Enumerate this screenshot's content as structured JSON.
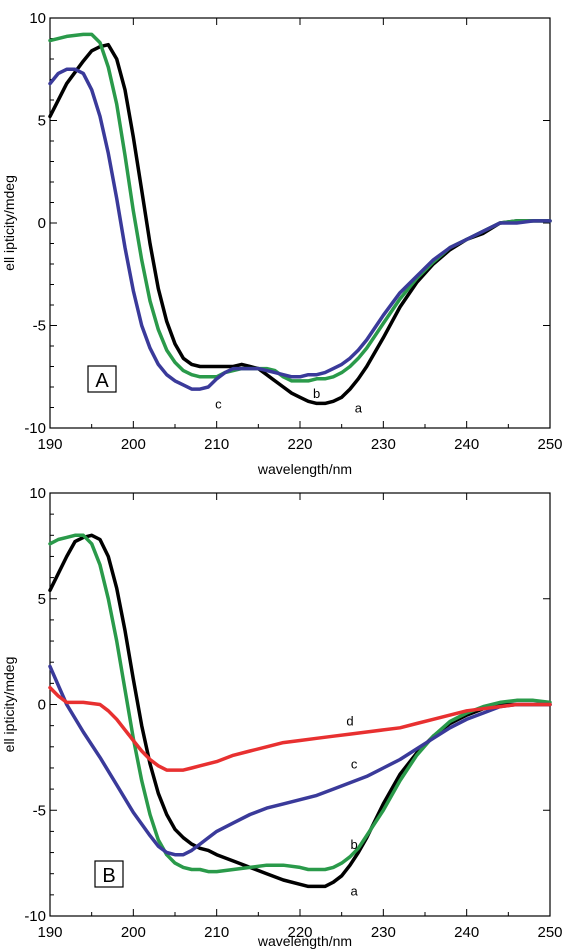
{
  "chart_data": [
    {
      "type": "line",
      "panel_label": "A",
      "xlabel": "wavelength/nm",
      "ylabel": "ell ipticity/mdeg",
      "xlim": [
        190,
        250
      ],
      "ylim": [
        -10,
        10
      ],
      "xticks": [
        190,
        200,
        210,
        220,
        230,
        240,
        250
      ],
      "yticks": [
        -10,
        -5,
        0,
        5,
        10
      ],
      "grid": false,
      "series": [
        {
          "name": "a",
          "color": "#000000",
          "label_at": [
            227,
            -9.0
          ],
          "x": [
            190,
            192,
            194,
            195,
            196,
            197,
            198,
            199,
            200,
            201,
            202,
            203,
            204,
            205,
            206,
            207,
            208,
            209,
            210,
            211,
            212,
            213,
            214,
            215,
            216,
            217,
            218,
            219,
            220,
            221,
            222,
            223,
            224,
            225,
            226,
            227,
            228,
            229,
            230,
            232,
            234,
            236,
            238,
            240,
            242,
            244,
            246,
            248,
            250
          ],
          "y": [
            5.2,
            6.8,
            7.9,
            8.4,
            8.6,
            8.7,
            8.0,
            6.5,
            4.2,
            1.6,
            -1.0,
            -3.2,
            -4.8,
            -5.9,
            -6.6,
            -6.9,
            -7.0,
            -7.0,
            -7.0,
            -7.0,
            -7.0,
            -6.9,
            -7.0,
            -7.1,
            -7.4,
            -7.7,
            -8.0,
            -8.3,
            -8.5,
            -8.7,
            -8.8,
            -8.8,
            -8.7,
            -8.5,
            -8.1,
            -7.6,
            -7.0,
            -6.3,
            -5.6,
            -4.1,
            -2.9,
            -2.0,
            -1.3,
            -0.8,
            -0.5,
            0.0,
            0.1,
            0.1,
            0.1
          ]
        },
        {
          "name": "b",
          "color": "#2a9a4a",
          "label_at": [
            222,
            -8.3
          ],
          "x": [
            190,
            192,
            194,
            195,
            196,
            197,
            198,
            199,
            200,
            201,
            202,
            203,
            204,
            205,
            206,
            207,
            208,
            209,
            210,
            211,
            212,
            213,
            214,
            215,
            216,
            217,
            218,
            219,
            220,
            221,
            222,
            223,
            224,
            225,
            226,
            227,
            228,
            229,
            230,
            232,
            234,
            236,
            238,
            240,
            242,
            244,
            246,
            248,
            250
          ],
          "y": [
            8.9,
            9.1,
            9.2,
            9.2,
            8.8,
            7.6,
            5.8,
            3.3,
            0.6,
            -1.8,
            -3.8,
            -5.2,
            -6.2,
            -6.8,
            -7.2,
            -7.4,
            -7.5,
            -7.5,
            -7.5,
            -7.3,
            -7.2,
            -7.1,
            -7.1,
            -7.1,
            -7.1,
            -7.2,
            -7.5,
            -7.7,
            -7.7,
            -7.7,
            -7.6,
            -7.6,
            -7.5,
            -7.3,
            -7.0,
            -6.6,
            -6.1,
            -5.5,
            -4.9,
            -3.7,
            -2.7,
            -1.9,
            -1.2,
            -0.8,
            -0.4,
            0.0,
            0.1,
            0.1,
            0.1
          ]
        },
        {
          "name": "c",
          "color": "#3a3a9a",
          "label_at": [
            210.2,
            -8.8
          ],
          "x": [
            190,
            191,
            192,
            193,
            194,
            195,
            196,
            197,
            198,
            199,
            200,
            201,
            202,
            203,
            204,
            205,
            206,
            207,
            208,
            209,
            210,
            211,
            212,
            213,
            214,
            215,
            216,
            217,
            218,
            219,
            220,
            221,
            222,
            223,
            224,
            225,
            226,
            227,
            228,
            229,
            230,
            232,
            234,
            236,
            238,
            240,
            242,
            244,
            246,
            248,
            250
          ],
          "y": [
            6.8,
            7.3,
            7.5,
            7.5,
            7.3,
            6.5,
            5.2,
            3.4,
            1.2,
            -1.2,
            -3.3,
            -5.0,
            -6.1,
            -6.9,
            -7.4,
            -7.7,
            -7.9,
            -8.1,
            -8.1,
            -8.0,
            -7.6,
            -7.3,
            -7.1,
            -7.1,
            -7.1,
            -7.1,
            -7.2,
            -7.3,
            -7.4,
            -7.5,
            -7.5,
            -7.4,
            -7.4,
            -7.3,
            -7.1,
            -6.9,
            -6.6,
            -6.2,
            -5.7,
            -5.1,
            -4.5,
            -3.4,
            -2.6,
            -1.8,
            -1.2,
            -0.8,
            -0.4,
            0.0,
            0.0,
            0.1,
            0.1
          ]
        }
      ]
    },
    {
      "type": "line",
      "panel_label": "B",
      "xlabel": "wavelength/nm",
      "ylabel": "ell ipticity/mdeg",
      "xlim": [
        190,
        250
      ],
      "ylim": [
        -10,
        10
      ],
      "xticks": [
        190,
        200,
        210,
        220,
        230,
        240,
        250
      ],
      "yticks": [
        -10,
        -5,
        0,
        5,
        10
      ],
      "grid": false,
      "series": [
        {
          "name": "a",
          "color": "#000000",
          "label_at": [
            226.5,
            -8.8
          ],
          "x": [
            190,
            192,
            193,
            194,
            195,
            196,
            197,
            198,
            199,
            200,
            201,
            202,
            203,
            204,
            205,
            206,
            207,
            208,
            209,
            210,
            212,
            214,
            216,
            218,
            220,
            221,
            222,
            223,
            224,
            225,
            226,
            227,
            228,
            229,
            230,
            232,
            234,
            236,
            238,
            240,
            242,
            244,
            246,
            248,
            250
          ],
          "y": [
            5.4,
            7.0,
            7.7,
            7.9,
            8.0,
            7.8,
            7.0,
            5.5,
            3.5,
            1.2,
            -1.0,
            -2.8,
            -4.2,
            -5.2,
            -5.9,
            -6.3,
            -6.6,
            -6.8,
            -6.9,
            -7.1,
            -7.4,
            -7.7,
            -8.0,
            -8.3,
            -8.5,
            -8.6,
            -8.6,
            -8.6,
            -8.4,
            -8.1,
            -7.6,
            -7.0,
            -6.3,
            -5.5,
            -4.7,
            -3.3,
            -2.3,
            -1.5,
            -0.9,
            -0.5,
            -0.2,
            0.0,
            0.0,
            0.0,
            0.0
          ]
        },
        {
          "name": "b",
          "color": "#2a9a4a",
          "label_at": [
            226.5,
            -6.6
          ],
          "x": [
            190,
            191,
            192,
            193,
            194,
            195,
            196,
            197,
            198,
            199,
            200,
            201,
            202,
            203,
            204,
            205,
            206,
            207,
            208,
            209,
            210,
            212,
            214,
            216,
            218,
            220,
            221,
            222,
            223,
            224,
            225,
            226,
            227,
            228,
            229,
            230,
            232,
            234,
            236,
            238,
            240,
            242,
            244,
            246,
            248,
            250
          ],
          "y": [
            7.6,
            7.8,
            7.9,
            8.0,
            8.0,
            7.6,
            6.6,
            5.0,
            3.0,
            0.7,
            -1.6,
            -3.6,
            -5.2,
            -6.4,
            -7.1,
            -7.5,
            -7.7,
            -7.8,
            -7.8,
            -7.9,
            -7.9,
            -7.8,
            -7.7,
            -7.6,
            -7.6,
            -7.7,
            -7.8,
            -7.8,
            -7.8,
            -7.7,
            -7.5,
            -7.2,
            -6.8,
            -6.2,
            -5.6,
            -5.0,
            -3.6,
            -2.4,
            -1.5,
            -0.8,
            -0.4,
            -0.1,
            0.1,
            0.2,
            0.2,
            0.1
          ]
        },
        {
          "name": "c",
          "color": "#3a3a9a",
          "label_at": [
            226.5,
            -2.8
          ],
          "x": [
            190,
            192,
            194,
            196,
            198,
            200,
            202,
            203,
            204,
            205,
            206,
            207,
            208,
            209,
            210,
            212,
            214,
            216,
            218,
            220,
            222,
            224,
            226,
            228,
            230,
            232,
            234,
            236,
            238,
            240,
            242,
            244,
            246,
            248,
            250
          ],
          "y": [
            1.8,
            0.0,
            -1.3,
            -2.5,
            -3.8,
            -5.1,
            -6.2,
            -6.7,
            -7.0,
            -7.1,
            -7.1,
            -6.9,
            -6.6,
            -6.3,
            -6.0,
            -5.6,
            -5.2,
            -4.9,
            -4.7,
            -4.5,
            -4.3,
            -4.0,
            -3.7,
            -3.4,
            -3.0,
            -2.6,
            -2.1,
            -1.6,
            -1.1,
            -0.7,
            -0.4,
            -0.1,
            0.0,
            0.0,
            0.0
          ]
        },
        {
          "name": "d",
          "color": "#e83030",
          "label_at": [
            226,
            -0.75
          ],
          "x": [
            190,
            191,
            192,
            194,
            196,
            197,
            198,
            199,
            200,
            201,
            202,
            203,
            204,
            205,
            206,
            207,
            208,
            210,
            212,
            214,
            216,
            218,
            220,
            222,
            224,
            226,
            228,
            230,
            232,
            234,
            236,
            238,
            240,
            242,
            244,
            246,
            248,
            250
          ],
          "y": [
            0.8,
            0.4,
            0.1,
            0.1,
            0.0,
            -0.3,
            -0.7,
            -1.2,
            -1.7,
            -2.2,
            -2.6,
            -2.9,
            -3.1,
            -3.1,
            -3.1,
            -3.0,
            -2.9,
            -2.7,
            -2.4,
            -2.2,
            -2.0,
            -1.8,
            -1.7,
            -1.6,
            -1.5,
            -1.4,
            -1.3,
            -1.2,
            -1.1,
            -0.9,
            -0.7,
            -0.5,
            -0.3,
            -0.2,
            -0.1,
            0.0,
            0.0,
            0.0
          ]
        }
      ]
    }
  ]
}
